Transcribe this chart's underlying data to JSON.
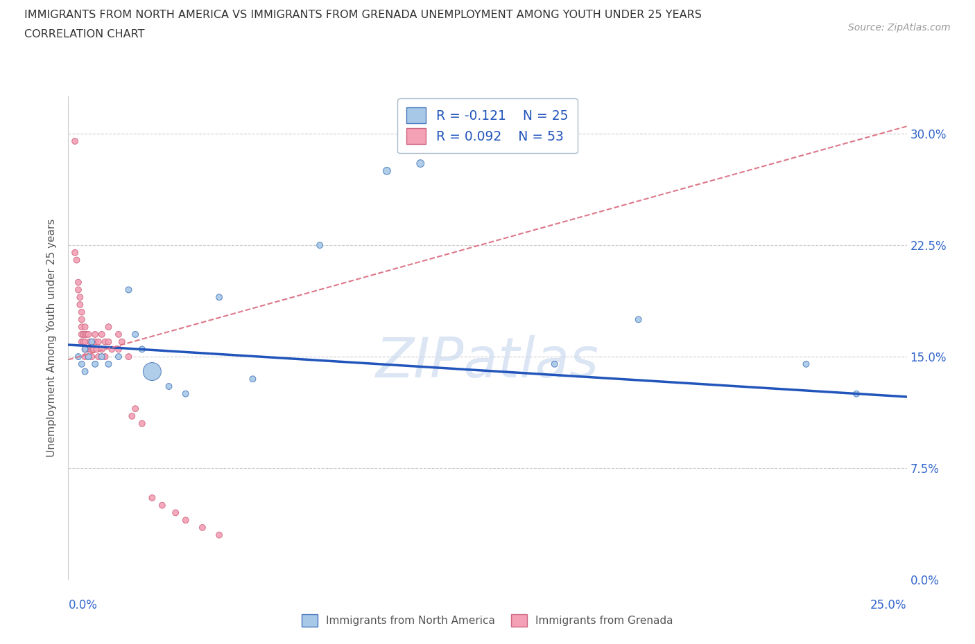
{
  "title_line1": "IMMIGRANTS FROM NORTH AMERICA VS IMMIGRANTS FROM GRENADA UNEMPLOYMENT AMONG YOUTH UNDER 25 YEARS",
  "title_line2": "CORRELATION CHART",
  "source": "Source: ZipAtlas.com",
  "ylabel": "Unemployment Among Youth under 25 years",
  "ytick_labels": [
    "0.0%",
    "7.5%",
    "15.0%",
    "22.5%",
    "30.0%"
  ],
  "ytick_vals": [
    0.0,
    7.5,
    15.0,
    22.5,
    30.0
  ],
  "xlim": [
    0.0,
    25.0
  ],
  "ylim": [
    0.0,
    32.5
  ],
  "color_north_america": "#a8c8e8",
  "color_grenada": "#f4a0b5",
  "trendline_north_america": "#2255bb",
  "trendline_grenada": "#dd7788",
  "legend_R_NA": "R = -0.121",
  "legend_N_NA": "N = 25",
  "legend_R_GR": "R = 0.092",
  "legend_N_GR": "N = 53",
  "watermark": "ZIPatlas",
  "na_x": [
    0.3,
    0.4,
    0.5,
    0.5,
    0.6,
    0.7,
    0.8,
    1.0,
    1.2,
    1.5,
    1.8,
    2.0,
    2.2,
    2.5,
    3.0,
    3.5,
    4.5,
    5.5,
    7.5,
    9.5,
    10.5,
    14.5,
    17.0,
    22.0,
    23.5
  ],
  "na_y": [
    15.0,
    14.5,
    15.5,
    14.0,
    15.0,
    16.0,
    14.5,
    15.0,
    14.5,
    15.0,
    19.5,
    16.5,
    15.5,
    14.0,
    13.0,
    12.5,
    19.0,
    13.5,
    22.5,
    27.5,
    28.0,
    14.5,
    17.5,
    14.5,
    12.5
  ],
  "na_size": [
    40,
    40,
    40,
    40,
    40,
    40,
    40,
    40,
    40,
    40,
    40,
    40,
    40,
    350,
    40,
    40,
    40,
    40,
    40,
    60,
    60,
    40,
    40,
    40,
    40
  ],
  "gr_x": [
    0.2,
    0.2,
    0.25,
    0.3,
    0.3,
    0.35,
    0.35,
    0.4,
    0.4,
    0.4,
    0.4,
    0.4,
    0.45,
    0.45,
    0.5,
    0.5,
    0.5,
    0.5,
    0.5,
    0.55,
    0.55,
    0.6,
    0.6,
    0.65,
    0.65,
    0.7,
    0.7,
    0.75,
    0.8,
    0.8,
    0.85,
    0.9,
    0.9,
    1.0,
    1.0,
    1.1,
    1.1,
    1.2,
    1.2,
    1.3,
    1.5,
    1.5,
    1.6,
    1.8,
    1.9,
    2.0,
    2.2,
    2.5,
    2.8,
    3.2,
    3.5,
    4.0,
    4.5
  ],
  "gr_y": [
    29.5,
    22.0,
    21.5,
    20.0,
    19.5,
    19.0,
    18.5,
    18.0,
    17.5,
    17.0,
    16.5,
    16.0,
    16.5,
    16.0,
    17.0,
    16.5,
    16.0,
    15.5,
    15.0,
    16.5,
    15.5,
    16.5,
    15.5,
    16.0,
    15.5,
    15.5,
    15.0,
    15.5,
    16.5,
    16.0,
    15.5,
    16.0,
    15.0,
    16.5,
    15.5,
    16.0,
    15.0,
    17.0,
    16.0,
    15.5,
    16.5,
    15.5,
    16.0,
    15.0,
    11.0,
    11.5,
    10.5,
    5.5,
    5.0,
    4.5,
    4.0,
    3.5,
    3.0
  ],
  "gr_size": [
    40,
    40,
    40,
    40,
    40,
    40,
    40,
    40,
    40,
    40,
    40,
    40,
    40,
    40,
    40,
    40,
    40,
    40,
    40,
    40,
    40,
    40,
    40,
    40,
    40,
    40,
    40,
    40,
    40,
    40,
    40,
    40,
    40,
    40,
    40,
    40,
    40,
    40,
    40,
    40,
    40,
    40,
    40,
    40,
    40,
    40,
    40,
    40,
    40,
    40,
    40,
    40,
    40
  ],
  "na_trend_x0": 0.0,
  "na_trend_y0": 15.8,
  "na_trend_x1": 25.0,
  "na_trend_y1": 12.3,
  "gr_trend_x0": 0.0,
  "gr_trend_y0": 14.8,
  "gr_trend_x1": 25.0,
  "gr_trend_y1": 30.5
}
